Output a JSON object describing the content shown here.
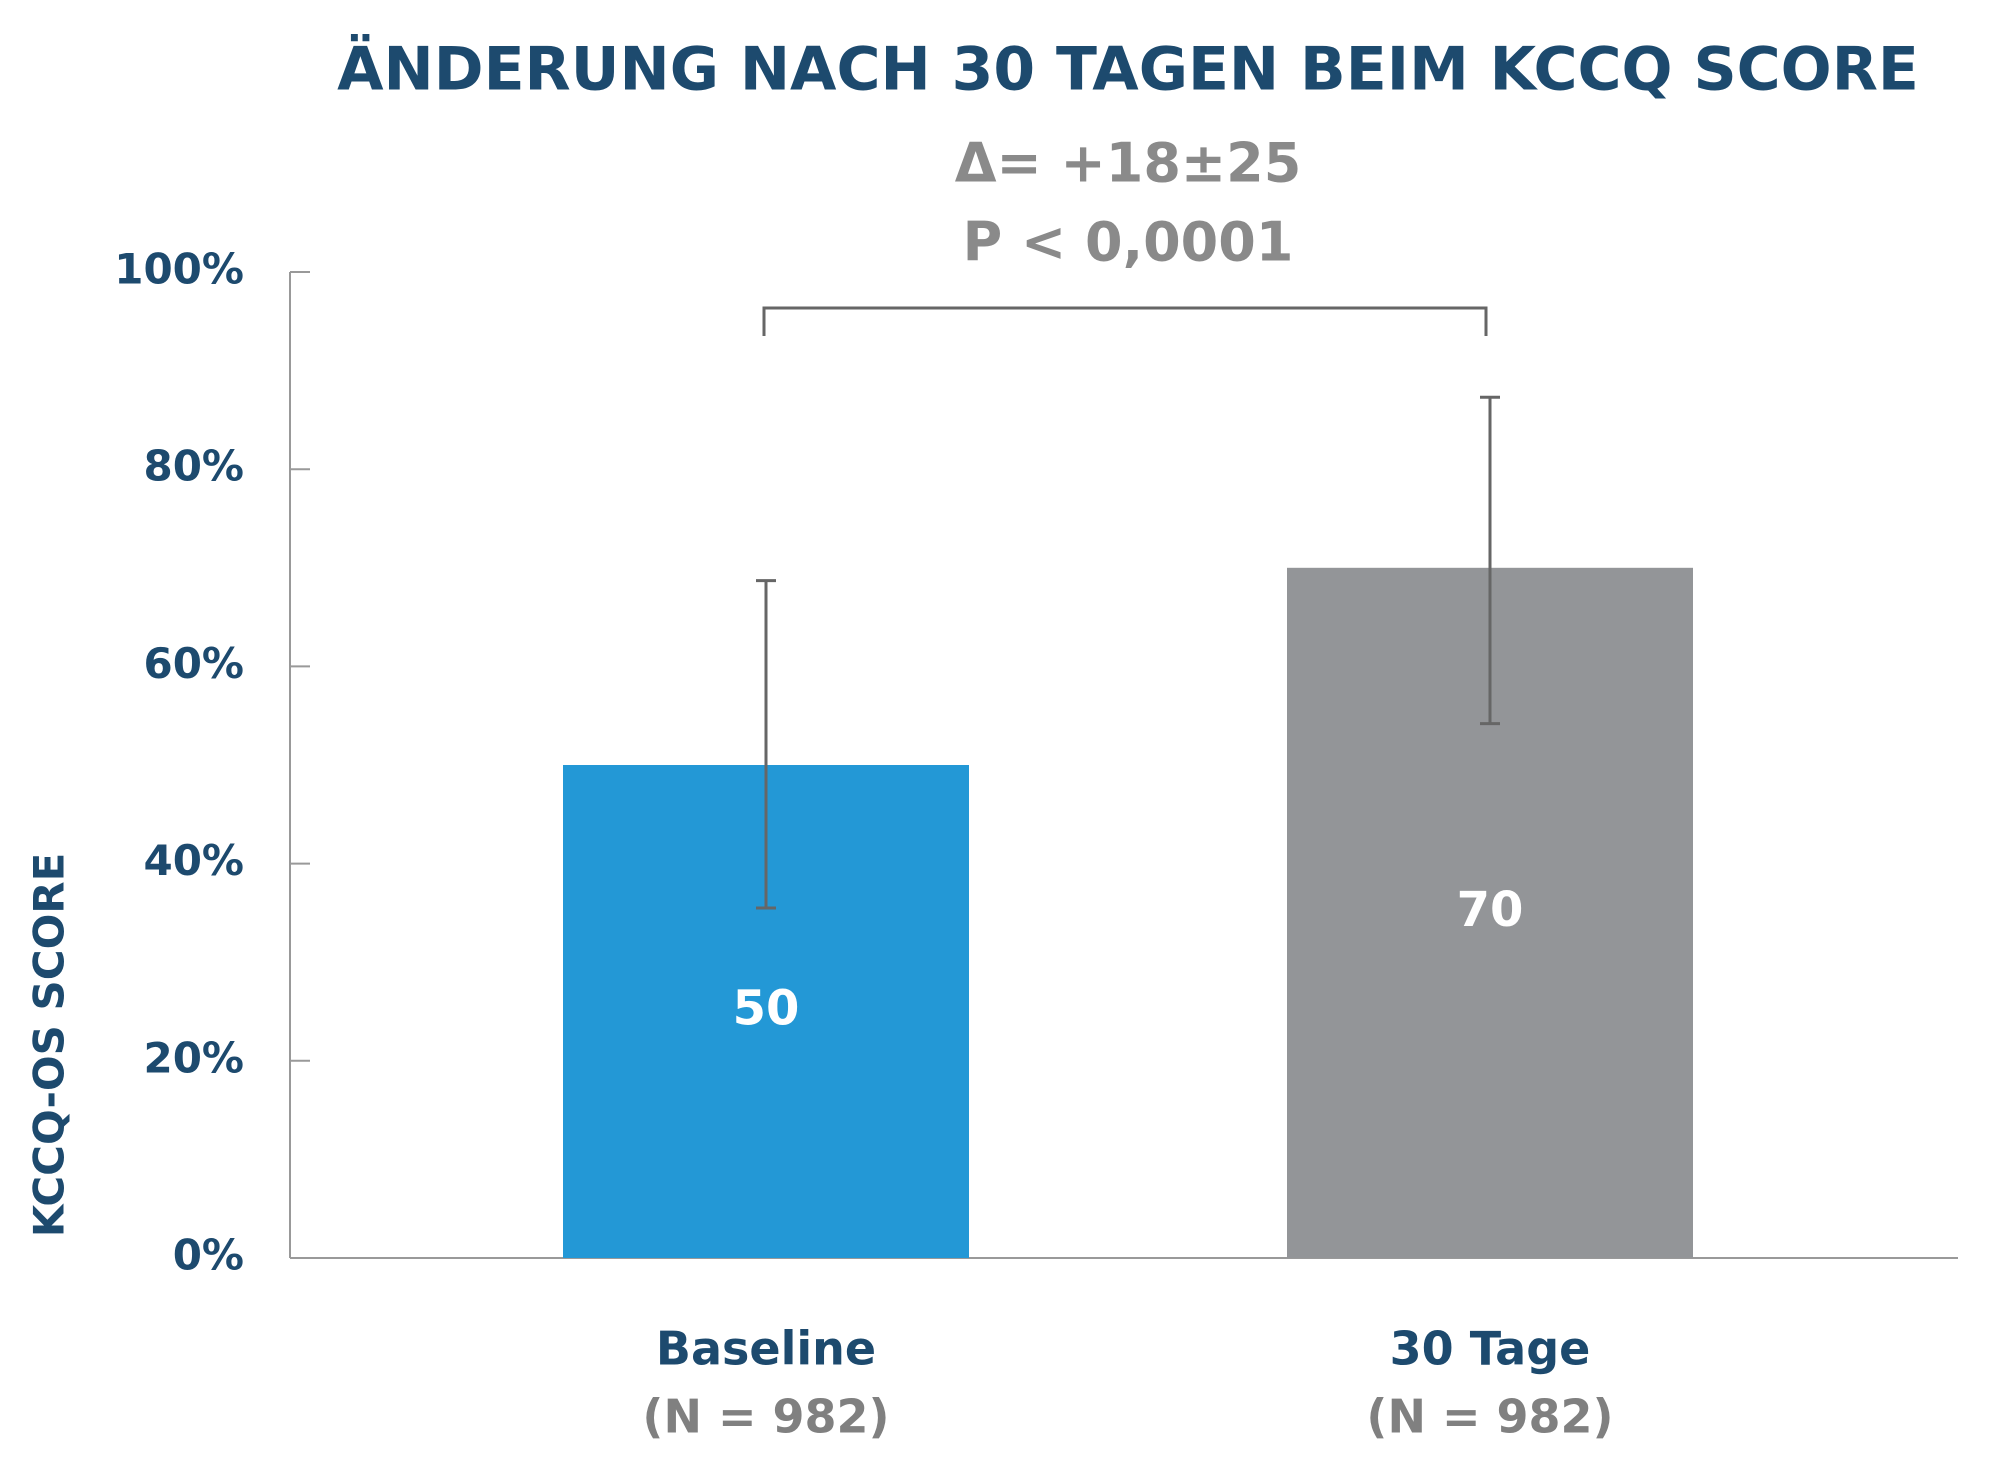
{
  "chart_data": {
    "type": "bar",
    "title": "ÄNDERUNG NACH 30 TAGEN BEIM KCCQ SCORE",
    "annotations": [
      "Δ= +18±25",
      "P < 0,0001"
    ],
    "ylabel": "KCCQ-OS SCORE",
    "categories": [
      "Baseline",
      "30 Tage"
    ],
    "category_subtitles": [
      "(N = 982)",
      "(N = 982)"
    ],
    "values": [
      50,
      70
    ],
    "colors": [
      "#2398d6",
      "#939598"
    ],
    "error_bars": [
      {
        "low": 35.5,
        "high": 68.7
      },
      {
        "low": 54.2,
        "high": 87.3
      }
    ],
    "ylim": [
      0,
      100
    ],
    "yticks": [
      {
        "value": 0,
        "label": "0%"
      },
      {
        "value": 20,
        "label": "20%"
      },
      {
        "value": 40,
        "label": "40%"
      },
      {
        "value": 60,
        "label": "60%"
      },
      {
        "value": 80,
        "label": "80%"
      },
      {
        "value": 100,
        "label": "100%"
      }
    ]
  }
}
